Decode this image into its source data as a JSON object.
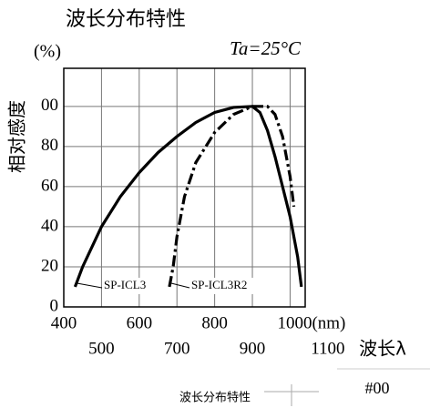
{
  "chart_data": {
    "type": "line",
    "title": "波长分布特性",
    "annotation": "Ta=25°C",
    "y_unit": "(%)",
    "ylabel": "相对感度",
    "xlabel": "波长λ",
    "caption": "波长分布特性",
    "footer_code": "#00",
    "xlim": [
      400,
      1040
    ],
    "ylim": [
      0,
      119
    ],
    "xticks": [
      400,
      500,
      600,
      700,
      800,
      900,
      {
        "value": 1000,
        "label": "1000(nm)"
      },
      1100
    ],
    "yticks": [
      0,
      20,
      40,
      60,
      80,
      {
        "value": 100,
        "label": "00"
      }
    ],
    "grid": true,
    "series": [
      {
        "name": "SP-ICL3",
        "color": "#000000",
        "dash": "solid",
        "x": [
          430,
          450,
          500,
          550,
          600,
          650,
          700,
          750,
          800,
          850,
          900,
          920,
          940,
          960,
          980,
          1000,
          1020,
          1030
        ],
        "values": [
          10,
          20,
          40,
          55,
          67,
          77,
          85,
          92,
          97,
          99.5,
          100,
          97,
          88,
          75,
          60,
          45,
          25,
          10
        ]
      },
      {
        "name": "SP-ICL3R2",
        "color": "#000000",
        "dash": "dashdot",
        "x": [
          680,
          690,
          700,
          720,
          750,
          800,
          850,
          900,
          940,
          960,
          980,
          1000,
          1010
        ],
        "values": [
          10,
          20,
          35,
          55,
          72,
          87,
          96,
          100,
          100,
          96,
          85,
          65,
          50
        ]
      }
    ]
  }
}
